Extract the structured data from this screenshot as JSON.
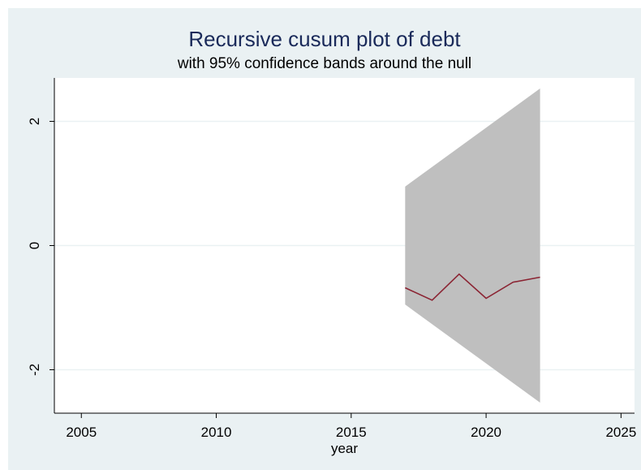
{
  "chart_data": {
    "type": "line",
    "title": "Recursive cusum plot of debt",
    "subtitle": "with 95% confidence bands around the null",
    "xlabel": "year",
    "ylabel": "",
    "xlim": [
      2004,
      2025.5
    ],
    "ylim": [
      -2.7,
      2.7
    ],
    "x_ticks": [
      2005,
      2010,
      2015,
      2020,
      2025
    ],
    "y_ticks": [
      -2,
      0,
      2
    ],
    "x_tick_labels": [
      "2005",
      "2010",
      "2015",
      "2020",
      "2025"
    ],
    "y_tick_labels": [
      "-2",
      "0",
      "2"
    ],
    "grid": true,
    "band": {
      "x": [
        2017,
        2022
      ],
      "upper": [
        0.95,
        2.53
      ],
      "lower": [
        -0.95,
        -2.53
      ],
      "color": "#bfbfbf"
    },
    "series": [
      {
        "x": [
          2017,
          2018,
          2019,
          2020,
          2021,
          2022
        ],
        "values": [
          -0.68,
          -0.88,
          -0.46,
          -0.85,
          -0.59,
          -0.51
        ],
        "color": "#8b2433"
      }
    ]
  }
}
